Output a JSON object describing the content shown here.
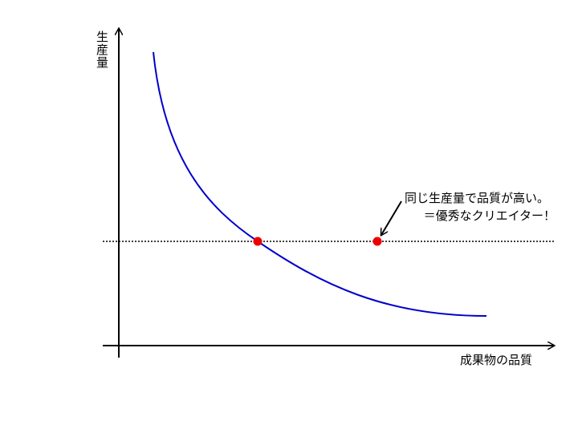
{
  "y_axis_label": "生産量",
  "x_axis_label": "成果物の品質",
  "annotation": {
    "line1": "同じ生産量で品質が高い。",
    "line2": "＝優秀なクリエイター！"
  }
}
